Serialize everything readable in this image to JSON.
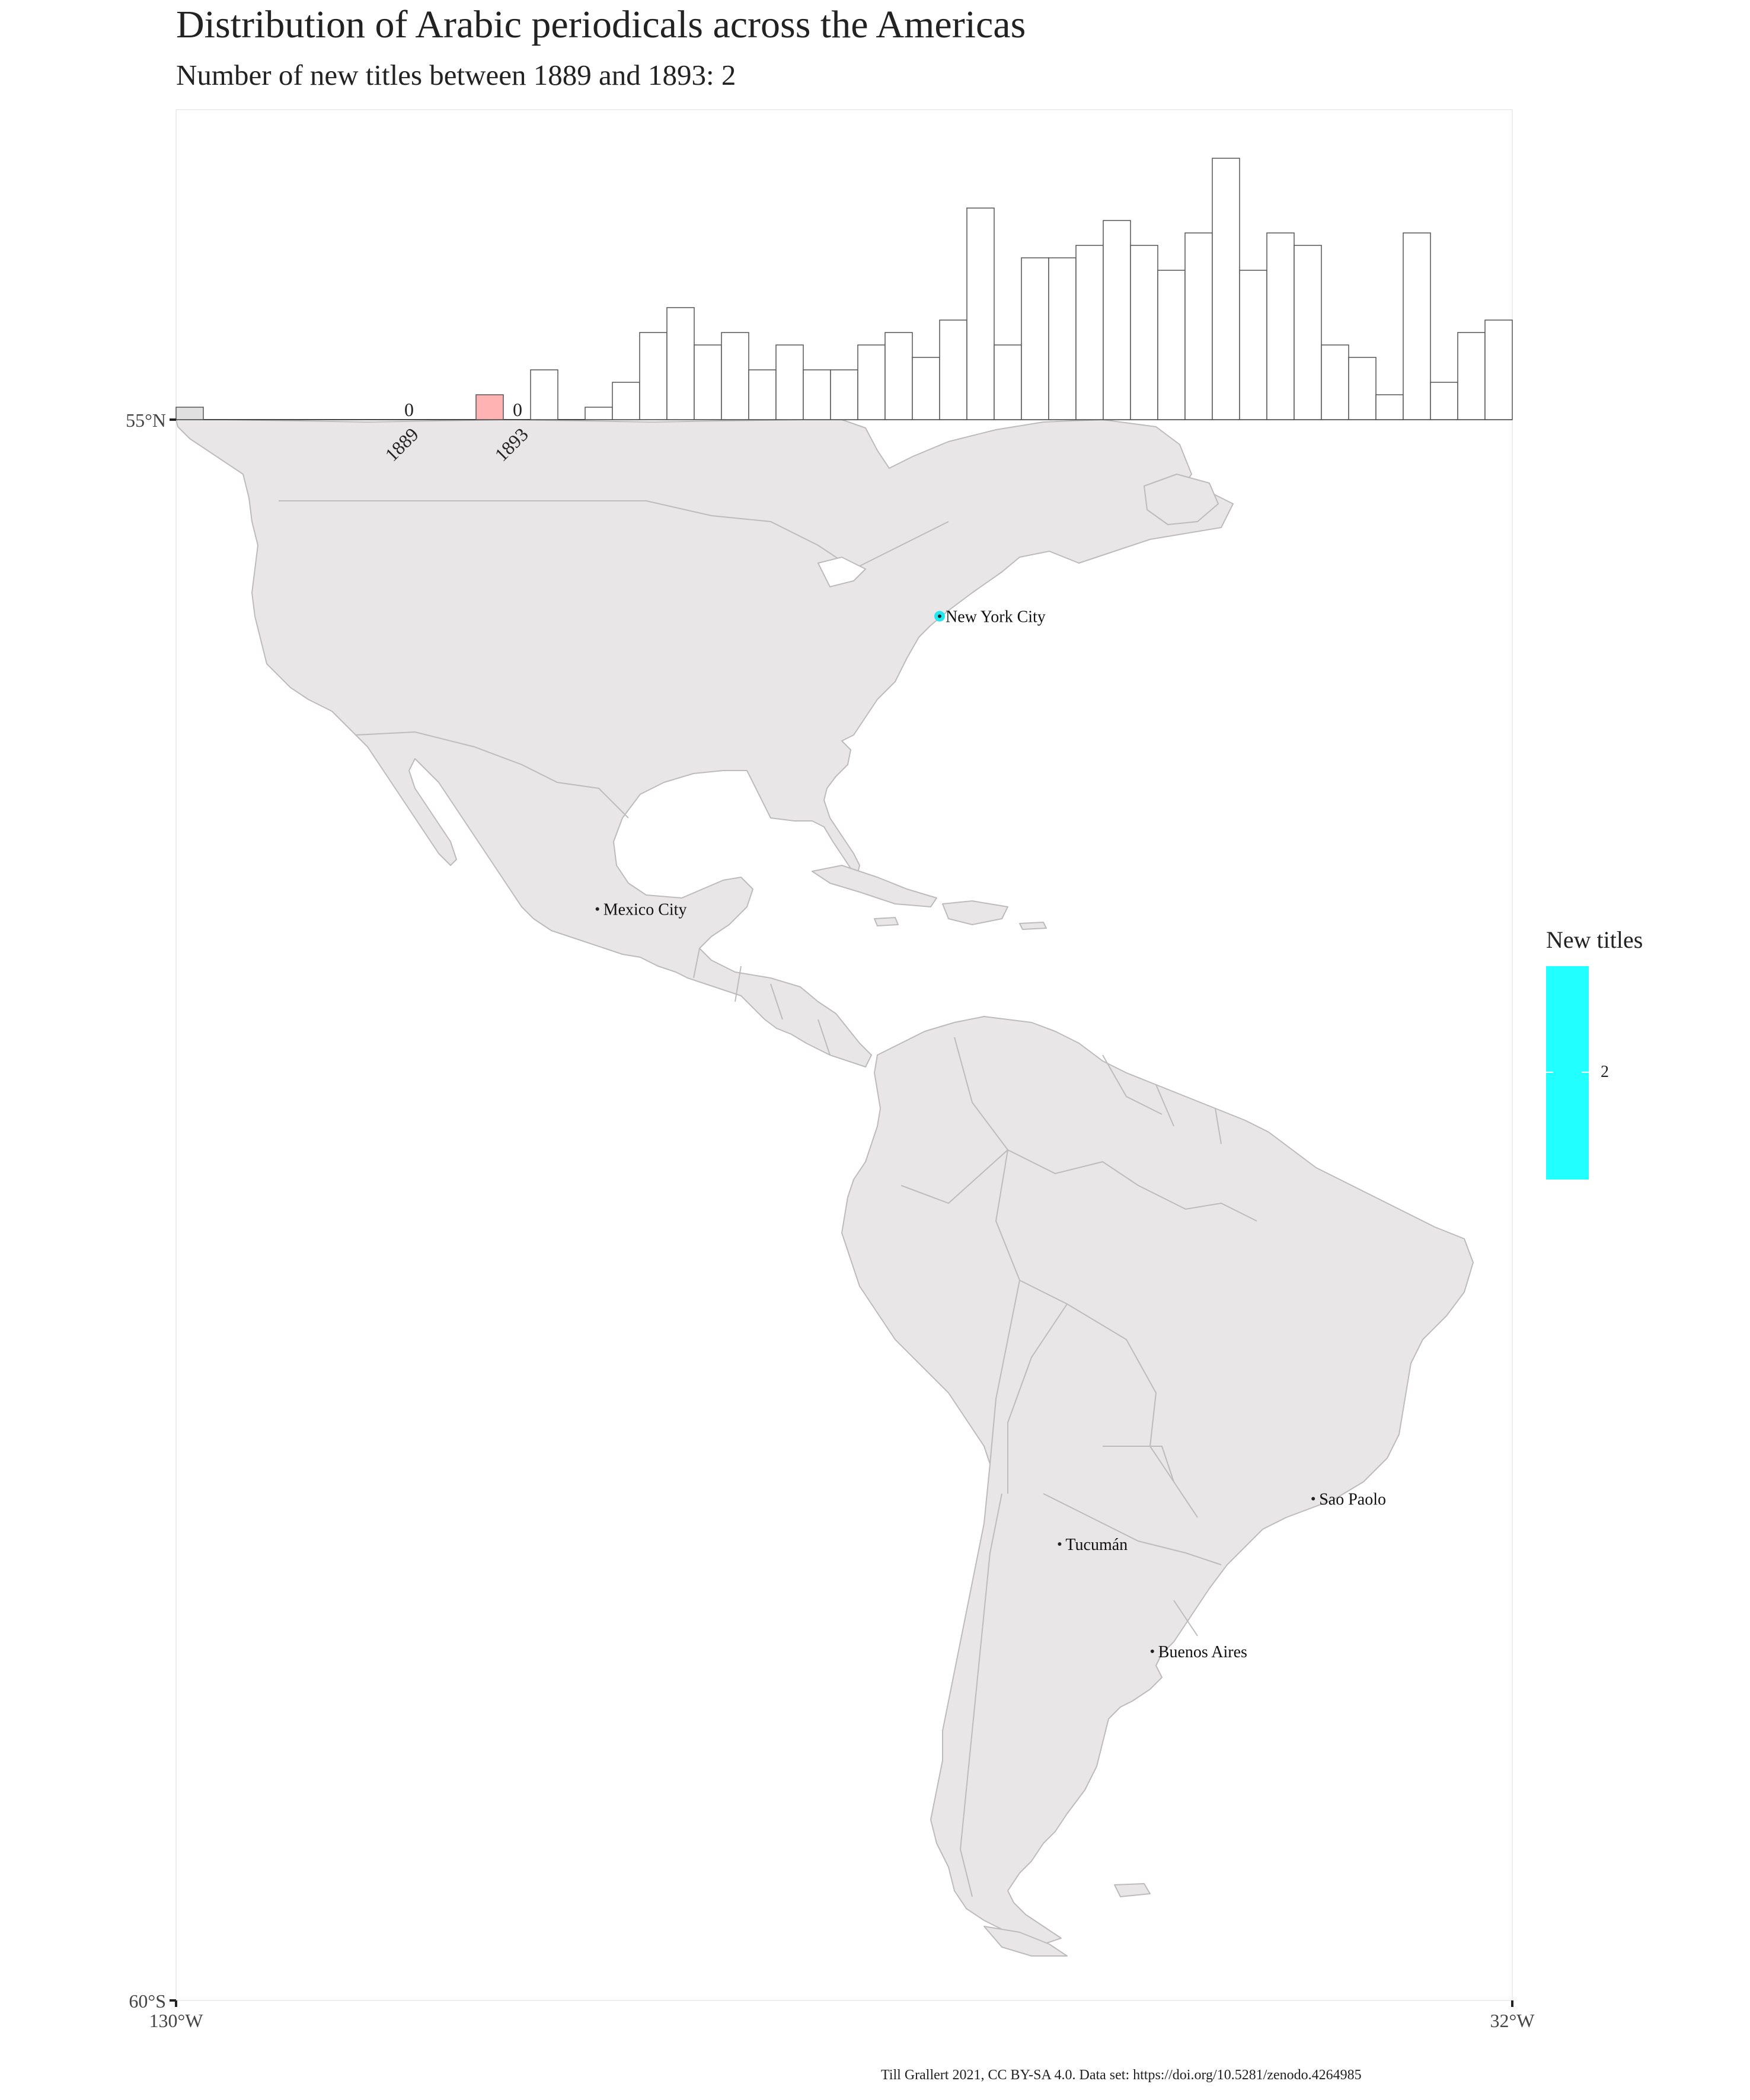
{
  "title": "Distribution of Arabic periodicals across the Americas",
  "subtitle": "Number of new titles between 1889 and 1893: 2",
  "caption": "Till Grallert 2021, CC BY-SA 4.0. Data set: https://doi.org/10.5281/zenodo.4264985",
  "colors": {
    "land": "#e8e6e6",
    "border": "#b8b6b6",
    "highlight_bar": "#ffb3b3",
    "current_bar": "#e0e0e0",
    "bar": "#ffffff",
    "legend": "#22ffff",
    "point": "#22e8ee"
  },
  "axes": {
    "lat_top": "55°N",
    "lat_bottom": "60°S",
    "lon_left": "130°W",
    "lon_right": "32°W"
  },
  "legend": {
    "title": "New titles",
    "tick": "2"
  },
  "cities": [
    {
      "name": "New York City",
      "lon": -74.0,
      "lat": 40.7,
      "new_titles": 2
    },
    {
      "name": "Mexico City",
      "lon": -99.1,
      "lat": 19.4
    },
    {
      "name": "Sao Paolo",
      "lon": -46.6,
      "lat": -23.5
    },
    {
      "name": "Tucumán",
      "lon": -65.2,
      "lat": -26.8
    },
    {
      "name": "Buenos Aires",
      "lon": -58.4,
      "lat": -34.6
    }
  ],
  "chart_data": {
    "type": "bar",
    "xlabel": "",
    "ylabel": "",
    "window_labels": {
      "start_year": "1889",
      "end_year": "1893",
      "start_value": "0",
      "end_value": "0"
    },
    "highlight_bar_index": 11,
    "current_bar_index": 0,
    "values": [
      1,
      0,
      0,
      0,
      0,
      0,
      0,
      0,
      0,
      0,
      0,
      2,
      0,
      4,
      0,
      1,
      3,
      7,
      9,
      6,
      7,
      4,
      6,
      4,
      4,
      6,
      7,
      5,
      8,
      17,
      6,
      13,
      13,
      14,
      16,
      14,
      12,
      15,
      21,
      12,
      15,
      14,
      6,
      5,
      2,
      15,
      3,
      7,
      8
    ]
  }
}
